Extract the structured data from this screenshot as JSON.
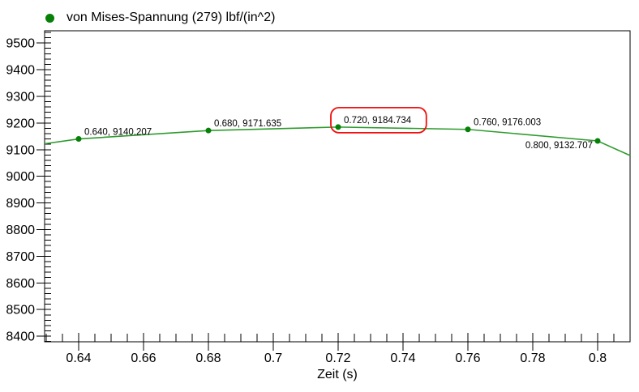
{
  "chart_data": {
    "type": "line",
    "title": "",
    "xlabel": "Zeit (s)",
    "ylabel": "",
    "grid": false,
    "legend_position": "top-left",
    "background_color": "#ffffff",
    "axis_color": "#000000",
    "xlim": [
      0.6295,
      0.81
    ],
    "ylim": [
      8400,
      9500
    ],
    "ylim_render": [
      8379,
      9546
    ],
    "x_major_tick_values": [
      0.64,
      0.66,
      0.68,
      0.7,
      0.72,
      0.74,
      0.76,
      0.78,
      0.8
    ],
    "x_major_tick_labels": [
      "0.64",
      "0.66",
      "0.68",
      "0.7",
      "0.72",
      "0.74",
      "0.76",
      "0.78",
      "0.8"
    ],
    "x_minor_tick_step": 0.005,
    "y_major_tick_values": [
      8400,
      8500,
      8600,
      8700,
      8800,
      8900,
      9000,
      9100,
      9200,
      9300,
      9400,
      9500
    ],
    "y_major_tick_labels": [
      "8400",
      "8500",
      "8600",
      "8700",
      "8800",
      "8900",
      "9000",
      "9100",
      "9200",
      "9300",
      "9400",
      "9500"
    ],
    "y_minor_tick_step": 20,
    "series": [
      {
        "name": "von Mises-Spannung (279) lbf/(in^2)",
        "line_color": "#2e9b2e",
        "marker_color": "#068006",
        "points": [
          {
            "x": 0.64,
            "y": 9140.207,
            "label": "0.640, 9140.207",
            "label_side": "right"
          },
          {
            "x": 0.68,
            "y": 9171.635,
            "label": "0.680, 9171.635",
            "label_side": "right"
          },
          {
            "x": 0.72,
            "y": 9184.734,
            "label": "0.720, 9184.734",
            "label_side": "right"
          },
          {
            "x": 0.76,
            "y": 9176.003,
            "label": "0.760, 9176.003",
            "label_side": "right"
          },
          {
            "x": 0.8,
            "y": 9132.707,
            "label": "0.800, 9132.707",
            "label_side": "left"
          }
        ],
        "edge_points_estimated": [
          {
            "x": 0.6295,
            "y": 9122
          },
          {
            "x": 0.81,
            "y": 9078
          }
        ]
      }
    ],
    "highlight": {
      "point_index": 2,
      "box_color": "#f20d0d"
    }
  }
}
